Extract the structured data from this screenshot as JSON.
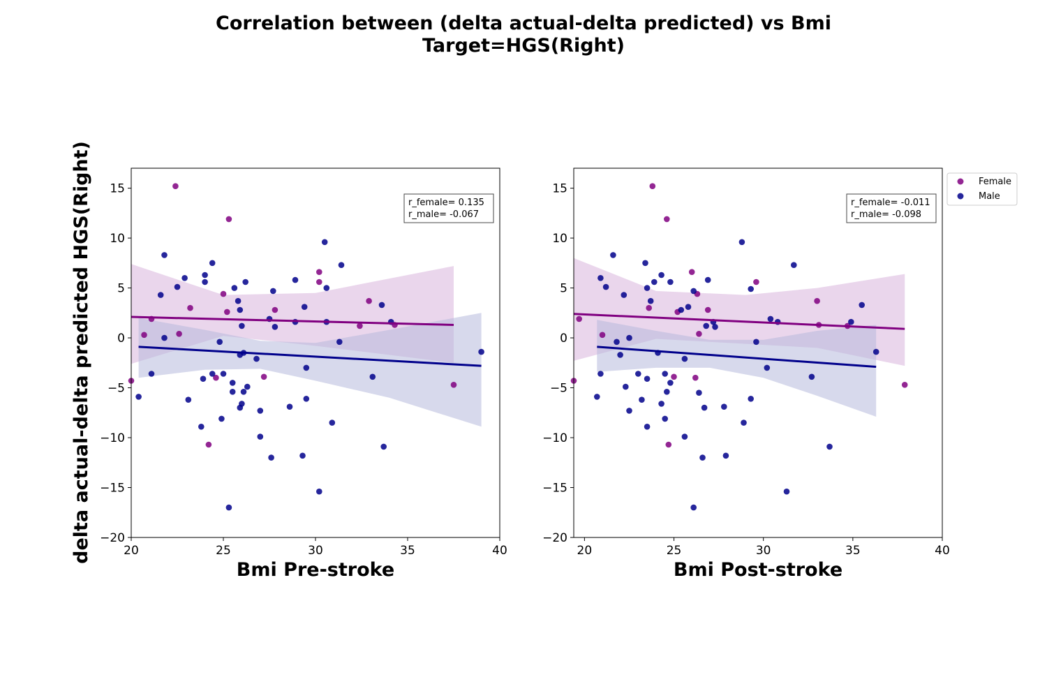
{
  "title": "Correlation between (delta actual-delta predicted) vs Bmi\nTarget=HGS(Right)",
  "ylabel": "delta actual-delta predicted HGS(Right)",
  "legend": [
    {
      "label": "Female",
      "color": "#800080"
    },
    {
      "label": "Male",
      "color": "#00008b"
    }
  ],
  "colors": {
    "female": "#800080",
    "male": "#00008b",
    "female_band": "#d8b4dc",
    "male_band": "#b7badc"
  },
  "chart_data": [
    {
      "type": "scatter",
      "xlabel": "Bmi Pre-stroke",
      "ylabel": "delta actual-delta predicted HGS(Right)",
      "xlim": [
        20,
        40
      ],
      "ylim": [
        -20,
        17
      ],
      "xticks": [
        20,
        25,
        30,
        35,
        40
      ],
      "yticks": [
        -20,
        -15,
        -10,
        -5,
        0,
        5,
        10,
        15
      ],
      "annotation": [
        "r_female= 0.135",
        "r_male= -0.067"
      ],
      "series": [
        {
          "name": "Female",
          "points": [
            [
              20.0,
              -4.3
            ],
            [
              20.7,
              0.3
            ],
            [
              21.1,
              1.9
            ],
            [
              22.4,
              15.2
            ],
            [
              22.6,
              0.4
            ],
            [
              23.2,
              3.0
            ],
            [
              24.2,
              -10.7
            ],
            [
              24.6,
              -4.0
            ],
            [
              25.0,
              4.4
            ],
            [
              25.2,
              2.6
            ],
            [
              25.3,
              11.9
            ],
            [
              27.2,
              -3.9
            ],
            [
              27.8,
              2.8
            ],
            [
              30.2,
              6.6
            ],
            [
              30.2,
              5.6
            ],
            [
              32.4,
              1.2
            ],
            [
              32.9,
              3.7
            ],
            [
              34.3,
              1.3
            ],
            [
              37.5,
              -4.7
            ]
          ],
          "fit": {
            "x": [
              20.0,
              37.5
            ],
            "y": [
              2.1,
              1.3
            ]
          },
          "ci": {
            "x": [
              20.0,
              25.0,
              30.0,
              37.5
            ],
            "upper": [
              7.4,
              4.3,
              4.5,
              7.2
            ],
            "lower": [
              -2.6,
              0.2,
              -0.8,
              -2.5
            ]
          }
        },
        {
          "name": "Male",
          "points": [
            [
              20.4,
              -5.9
            ],
            [
              21.1,
              -3.6
            ],
            [
              21.6,
              4.3
            ],
            [
              21.8,
              8.3
            ],
            [
              21.8,
              0.0
            ],
            [
              22.5,
              5.1
            ],
            [
              22.9,
              6.0
            ],
            [
              23.1,
              -6.2
            ],
            [
              23.8,
              -8.9
            ],
            [
              23.9,
              -4.1
            ],
            [
              24.0,
              5.6
            ],
            [
              24.0,
              6.3
            ],
            [
              24.4,
              -3.6
            ],
            [
              24.4,
              7.5
            ],
            [
              24.8,
              -0.4
            ],
            [
              24.9,
              -8.1
            ],
            [
              25.0,
              -3.6
            ],
            [
              25.3,
              -17.0
            ],
            [
              25.5,
              -4.5
            ],
            [
              25.5,
              -5.4
            ],
            [
              25.6,
              5.0
            ],
            [
              25.8,
              3.7
            ],
            [
              25.9,
              2.8
            ],
            [
              25.9,
              -1.7
            ],
            [
              25.9,
              -7.0
            ],
            [
              26.0,
              1.2
            ],
            [
              26.0,
              -6.6
            ],
            [
              26.1,
              -1.5
            ],
            [
              26.1,
              -5.4
            ],
            [
              26.2,
              5.6
            ],
            [
              26.3,
              -4.9
            ],
            [
              26.8,
              -2.1
            ],
            [
              27.0,
              -7.3
            ],
            [
              27.0,
              -9.9
            ],
            [
              27.5,
              1.9
            ],
            [
              27.6,
              -12.0
            ],
            [
              27.7,
              4.7
            ],
            [
              27.8,
              1.1
            ],
            [
              28.6,
              -6.9
            ],
            [
              28.9,
              5.8
            ],
            [
              28.9,
              1.6
            ],
            [
              29.3,
              -11.8
            ],
            [
              29.4,
              3.1
            ],
            [
              29.5,
              -6.1
            ],
            [
              29.5,
              -3.0
            ],
            [
              30.2,
              -15.4
            ],
            [
              30.5,
              9.6
            ],
            [
              30.6,
              5.0
            ],
            [
              30.6,
              1.6
            ],
            [
              30.9,
              -8.5
            ],
            [
              31.3,
              -0.4
            ],
            [
              31.4,
              7.3
            ],
            [
              33.1,
              -3.9
            ],
            [
              33.6,
              3.3
            ],
            [
              33.7,
              -10.9
            ],
            [
              34.1,
              1.6
            ],
            [
              39.0,
              -1.4
            ]
          ],
          "fit": {
            "x": [
              20.4,
              39.0
            ],
            "y": [
              -0.9,
              -2.8
            ]
          },
          "ci": {
            "x": [
              20.4,
              24.0,
              27.0,
              30.0,
              34.0,
              39.0
            ],
            "upper": [
              2.0,
              0.8,
              -0.3,
              -0.5,
              0.8,
              2.5
            ],
            "lower": [
              -4.0,
              -3.2,
              -3.1,
              -4.3,
              -6.0,
              -8.9
            ]
          }
        }
      ]
    },
    {
      "type": "scatter",
      "xlabel": "Bmi Post-stroke",
      "ylabel": "",
      "xlim": [
        19.4,
        40
      ],
      "ylim": [
        -20,
        17
      ],
      "xticks": [
        20,
        25,
        30,
        35,
        40
      ],
      "yticks": [
        -20,
        -15,
        -10,
        -5,
        0,
        5,
        10,
        15
      ],
      "annotation": [
        "r_female= -0.011",
        "r_male= -0.098"
      ],
      "series": [
        {
          "name": "Female",
          "points": [
            [
              19.4,
              -4.3
            ],
            [
              19.7,
              1.9
            ],
            [
              21.0,
              0.3
            ],
            [
              23.6,
              3.0
            ],
            [
              23.8,
              15.2
            ],
            [
              24.6,
              11.9
            ],
            [
              24.7,
              -10.7
            ],
            [
              25.0,
              -3.9
            ],
            [
              25.2,
              2.6
            ],
            [
              26.0,
              6.6
            ],
            [
              26.2,
              -4.0
            ],
            [
              26.3,
              4.4
            ],
            [
              26.4,
              0.4
            ],
            [
              26.9,
              2.8
            ],
            [
              29.6,
              5.6
            ],
            [
              33.0,
              3.7
            ],
            [
              33.1,
              1.3
            ],
            [
              34.7,
              1.2
            ],
            [
              37.9,
              -4.7
            ]
          ],
          "fit": {
            "x": [
              19.4,
              37.9
            ],
            "y": [
              2.4,
              0.9
            ]
          },
          "ci": {
            "x": [
              19.4,
              24.0,
              29.0,
              33.0,
              37.9
            ],
            "upper": [
              8.0,
              4.7,
              4.3,
              5.0,
              6.4
            ],
            "lower": [
              -2.3,
              -0.1,
              -0.6,
              -1.0,
              -2.8
            ]
          }
        },
        {
          "name": "Male",
          "points": [
            [
              20.7,
              -5.9
            ],
            [
              20.9,
              6.0
            ],
            [
              20.9,
              -3.6
            ],
            [
              21.2,
              5.1
            ],
            [
              21.6,
              8.3
            ],
            [
              21.8,
              -0.4
            ],
            [
              22.0,
              -1.7
            ],
            [
              22.2,
              4.3
            ],
            [
              22.3,
              -4.9
            ],
            [
              22.5,
              0.0
            ],
            [
              22.5,
              -7.3
            ],
            [
              23.0,
              -3.6
            ],
            [
              23.2,
              -6.2
            ],
            [
              23.4,
              7.5
            ],
            [
              23.5,
              -4.1
            ],
            [
              23.5,
              -8.9
            ],
            [
              23.5,
              5.0
            ],
            [
              23.7,
              3.7
            ],
            [
              23.9,
              5.6
            ],
            [
              24.1,
              -1.5
            ],
            [
              24.3,
              6.3
            ],
            [
              24.3,
              -6.6
            ],
            [
              24.5,
              -3.6
            ],
            [
              24.5,
              -8.1
            ],
            [
              24.6,
              -5.4
            ],
            [
              24.8,
              5.6
            ],
            [
              24.8,
              -4.5
            ],
            [
              25.4,
              2.8
            ],
            [
              25.6,
              -2.1
            ],
            [
              25.6,
              -9.9
            ],
            [
              25.8,
              3.1
            ],
            [
              26.1,
              -17.0
            ],
            [
              26.1,
              4.7
            ],
            [
              26.4,
              -5.5
            ],
            [
              26.6,
              -12.0
            ],
            [
              26.7,
              -7.0
            ],
            [
              26.8,
              1.2
            ],
            [
              26.9,
              5.8
            ],
            [
              27.2,
              1.6
            ],
            [
              27.3,
              1.1
            ],
            [
              27.8,
              -6.9
            ],
            [
              27.9,
              -11.8
            ],
            [
              28.8,
              9.6
            ],
            [
              28.9,
              -8.5
            ],
            [
              29.3,
              -6.1
            ],
            [
              29.3,
              4.9
            ],
            [
              29.6,
              -0.4
            ],
            [
              30.2,
              -3.0
            ],
            [
              30.4,
              1.9
            ],
            [
              30.8,
              1.6
            ],
            [
              31.3,
              -15.4
            ],
            [
              31.7,
              7.3
            ],
            [
              32.7,
              -3.9
            ],
            [
              33.7,
              -10.9
            ],
            [
              34.9,
              1.6
            ],
            [
              35.5,
              3.3
            ],
            [
              36.3,
              -1.4
            ]
          ],
          "fit": {
            "x": [
              20.7,
              36.3
            ],
            "y": [
              -0.9,
              -2.9
            ]
          },
          "ci": {
            "x": [
              20.7,
              24.0,
              27.0,
              30.0,
              33.0,
              36.3
            ],
            "upper": [
              1.8,
              0.7,
              -0.2,
              -0.2,
              0.7,
              1.3
            ],
            "lower": [
              -3.4,
              -3.0,
              -3.0,
              -4.0,
              -5.8,
              -7.9
            ]
          }
        }
      ]
    }
  ]
}
